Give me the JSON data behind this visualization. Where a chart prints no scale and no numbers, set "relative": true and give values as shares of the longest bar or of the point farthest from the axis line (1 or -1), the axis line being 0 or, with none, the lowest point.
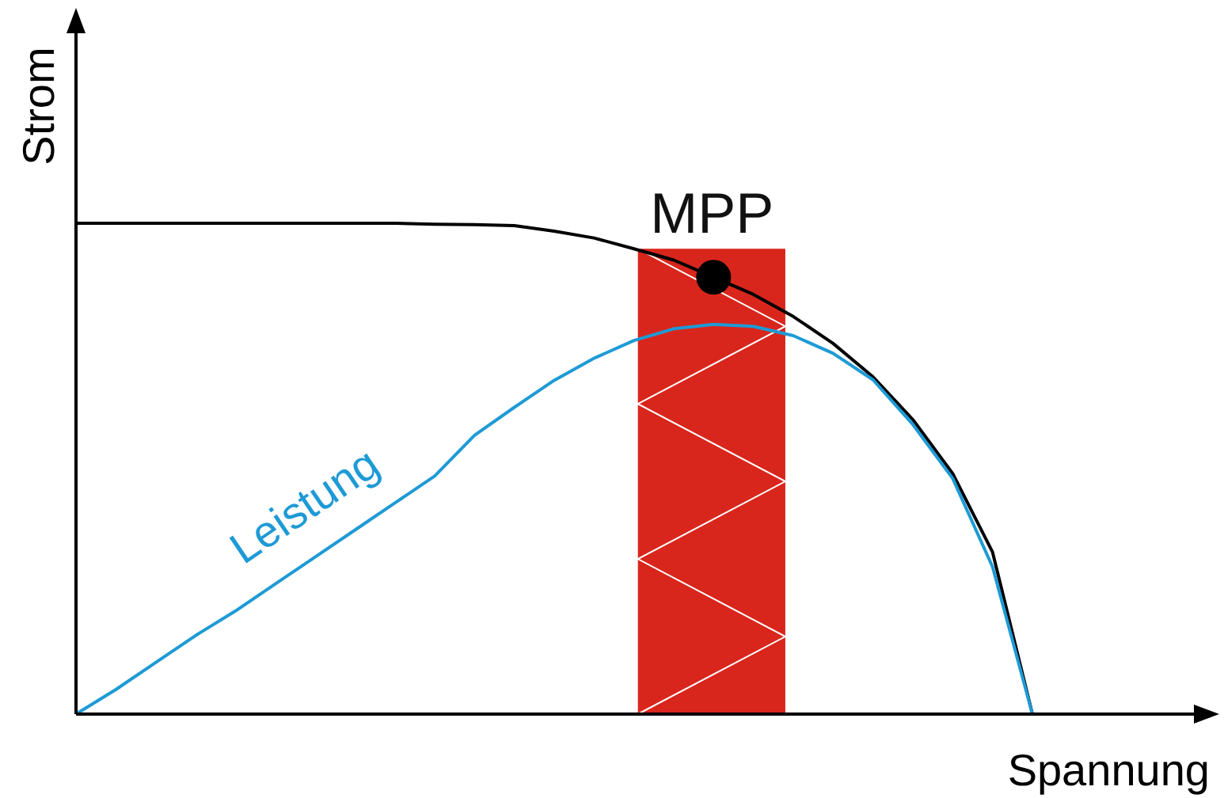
{
  "chart_data": {
    "type": "line",
    "relative": true,
    "xlabel": "Spannung",
    "ylabel": "Strom",
    "categories": [
      null,
      null,
      null,
      null,
      null,
      null,
      null,
      null,
      null,
      null,
      null,
      null,
      null,
      null,
      null,
      null,
      null,
      null,
      null,
      null,
      null,
      null,
      null,
      null,
      null
    ],
    "annotations": [
      {
        "text": "MPP",
        "y": 0.89
      }
    ],
    "series": [
      {
        "color": "#000000",
        "values": [
          1,
          1,
          1,
          1,
          1,
          1,
          1,
          1,
          1,
          0.998,
          0.997,
          0.995,
          0.984,
          0.97,
          0.948,
          0.925,
          0.89,
          0.855,
          0.81,
          0.755,
          0.687,
          0.6,
          0.49,
          0.33,
          0
        ]
      },
      {
        "name": "Leistung",
        "color": "#1e9ad6",
        "values": [
          0,
          0.05,
          0.105,
          0.16,
          0.21,
          0.265,
          0.32,
          0.375,
          0.43,
          0.485,
          0.568,
          0.625,
          0.68,
          0.725,
          0.761,
          0.785,
          0.794,
          0.79,
          0.771,
          0.735,
          0.681,
          0.59,
          0.48,
          0.3,
          0
        ]
      }
    ]
  }
}
